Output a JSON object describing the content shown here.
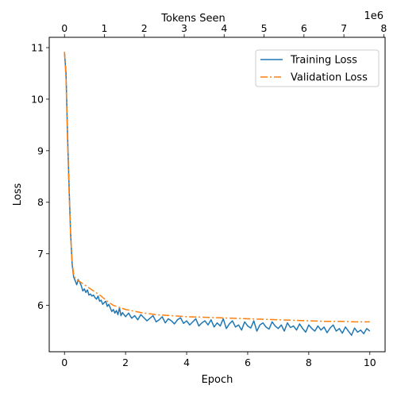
{
  "chart_data": {
    "type": "line",
    "xlabel": "Epoch",
    "ylabel": "Loss",
    "x2label": "Tokens Seen",
    "x2_offset_text": "1e6",
    "xlim": [
      -0.5,
      10.5
    ],
    "ylim": [
      5.1,
      11.2
    ],
    "x_ticks": [
      0,
      2,
      4,
      6,
      8,
      10
    ],
    "y_ticks": [
      6,
      7,
      8,
      9,
      10,
      11
    ],
    "x2_ticks": [
      0,
      1,
      2,
      3,
      4,
      5,
      6,
      7,
      8
    ],
    "x2_per_epoch": 0.765,
    "legend_position": "top-right",
    "grid": false,
    "series": [
      {
        "name": "Training Loss",
        "color": "#1f77b4",
        "dash": "solid",
        "x": [
          0,
          0.05,
          0.1,
          0.15,
          0.2,
          0.25,
          0.3,
          0.35,
          0.4,
          0.45,
          0.5,
          0.55,
          0.6,
          0.65,
          0.7,
          0.75,
          0.8,
          0.85,
          0.9,
          0.95,
          1.0,
          1.05,
          1.1,
          1.15,
          1.2,
          1.25,
          1.3,
          1.35,
          1.4,
          1.45,
          1.5,
          1.55,
          1.6,
          1.65,
          1.7,
          1.75,
          1.8,
          1.85,
          1.9,
          1.95,
          2.0,
          2.1,
          2.2,
          2.3,
          2.4,
          2.5,
          2.6,
          2.7,
          2.8,
          2.9,
          3.0,
          3.1,
          3.2,
          3.3,
          3.4,
          3.5,
          3.6,
          3.7,
          3.8,
          3.9,
          4.0,
          4.1,
          4.2,
          4.3,
          4.4,
          4.5,
          4.6,
          4.7,
          4.8,
          4.9,
          5.0,
          5.1,
          5.2,
          5.3,
          5.4,
          5.5,
          5.6,
          5.7,
          5.8,
          5.9,
          6.0,
          6.1,
          6.2,
          6.3,
          6.4,
          6.5,
          6.6,
          6.7,
          6.8,
          6.9,
          7.0,
          7.1,
          7.2,
          7.3,
          7.4,
          7.5,
          7.6,
          7.7,
          7.8,
          7.9,
          8.0,
          8.1,
          8.2,
          8.3,
          8.4,
          8.5,
          8.6,
          8.7,
          8.8,
          8.9,
          9.0,
          9.1,
          9.2,
          9.3,
          9.4,
          9.5,
          9.6,
          9.7,
          9.8,
          9.9,
          10.0
        ],
        "y": [
          10.9,
          10.5,
          9.3,
          8.3,
          7.4,
          6.8,
          6.55,
          6.48,
          6.4,
          6.5,
          6.45,
          6.38,
          6.28,
          6.32,
          6.25,
          6.3,
          6.2,
          6.22,
          6.18,
          6.2,
          6.15,
          6.12,
          6.18,
          6.08,
          6.1,
          6.02,
          6.05,
          6.08,
          5.98,
          6.02,
          5.95,
          5.88,
          5.92,
          5.85,
          5.9,
          5.82,
          5.95,
          5.8,
          5.86,
          5.82,
          5.78,
          5.85,
          5.75,
          5.8,
          5.72,
          5.82,
          5.76,
          5.7,
          5.75,
          5.8,
          5.68,
          5.72,
          5.78,
          5.66,
          5.74,
          5.7,
          5.64,
          5.72,
          5.76,
          5.65,
          5.7,
          5.62,
          5.68,
          5.74,
          5.6,
          5.66,
          5.7,
          5.62,
          5.72,
          5.58,
          5.66,
          5.6,
          5.74,
          5.55,
          5.64,
          5.7,
          5.58,
          5.62,
          5.52,
          5.68,
          5.6,
          5.56,
          5.7,
          5.5,
          5.62,
          5.66,
          5.58,
          5.54,
          5.68,
          5.6,
          5.55,
          5.62,
          5.5,
          5.66,
          5.57,
          5.6,
          5.52,
          5.64,
          5.55,
          5.48,
          5.62,
          5.55,
          5.5,
          5.6,
          5.52,
          5.58,
          5.47,
          5.56,
          5.62,
          5.5,
          5.55,
          5.46,
          5.58,
          5.5,
          5.42,
          5.56,
          5.48,
          5.52,
          5.45,
          5.55,
          5.5
        ]
      },
      {
        "name": "Validation Loss",
        "color": "#ff7f0e",
        "dash": "dashdot",
        "x": [
          0,
          0.05,
          0.1,
          0.15,
          0.2,
          0.25,
          0.3,
          0.35,
          0.4,
          0.5,
          0.6,
          0.7,
          0.8,
          0.9,
          1.0,
          1.2,
          1.4,
          1.6,
          1.8,
          2.0,
          2.5,
          3.0,
          3.5,
          4.0,
          4.5,
          5.0,
          5.5,
          6.0,
          6.5,
          7.0,
          7.5,
          8.0,
          8.5,
          9.0,
          9.5,
          10.0
        ],
        "y": [
          10.92,
          10.4,
          9.2,
          8.2,
          7.35,
          6.85,
          6.6,
          6.52,
          6.5,
          6.46,
          6.42,
          6.38,
          6.34,
          6.3,
          6.26,
          6.18,
          6.08,
          6.0,
          5.96,
          5.92,
          5.86,
          5.82,
          5.8,
          5.78,
          5.77,
          5.76,
          5.75,
          5.74,
          5.73,
          5.72,
          5.71,
          5.7,
          5.69,
          5.69,
          5.68,
          5.68
        ]
      }
    ]
  }
}
